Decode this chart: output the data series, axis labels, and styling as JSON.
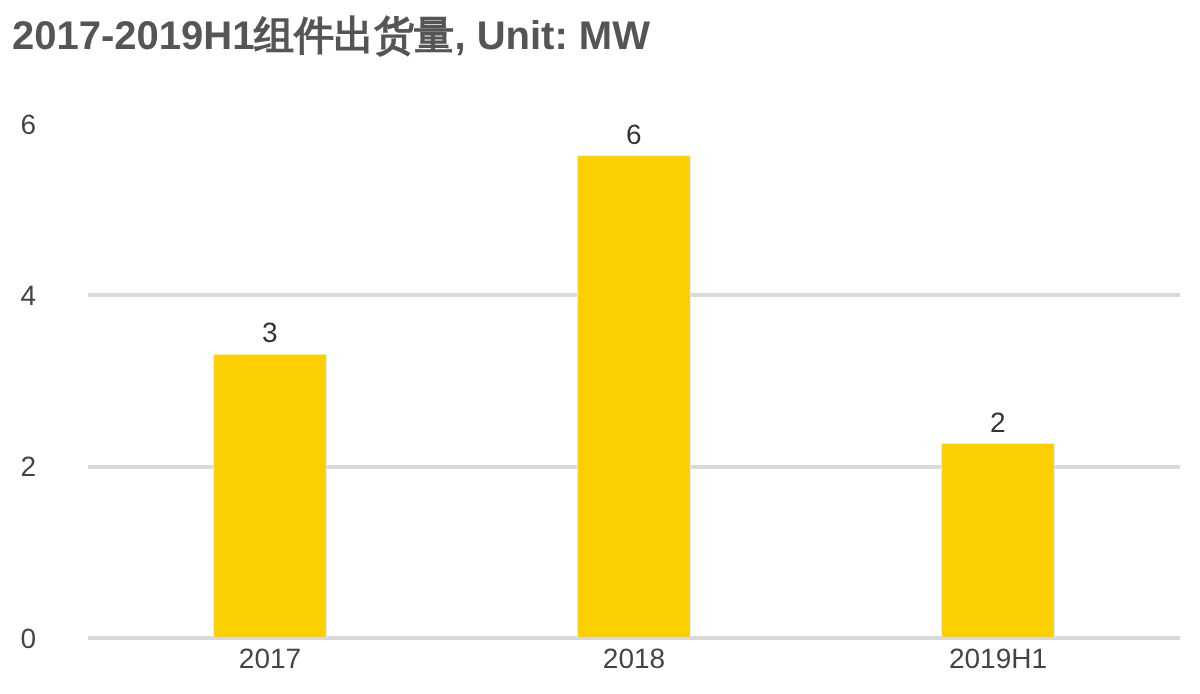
{
  "chart_data": {
    "type": "bar",
    "title": "2017-2019H1组件出货量, Unit: MW",
    "categories": [
      "2017",
      "2018",
      "2019H1"
    ],
    "values": [
      3.31,
      5.63,
      2.27
    ],
    "value_labels": [
      "3",
      "6",
      "2"
    ],
    "color": "#fbcf00",
    "ylim": [
      0,
      6
    ],
    "yticks": [
      0,
      2,
      4,
      6
    ],
    "grid": "y",
    "legend": false
  }
}
